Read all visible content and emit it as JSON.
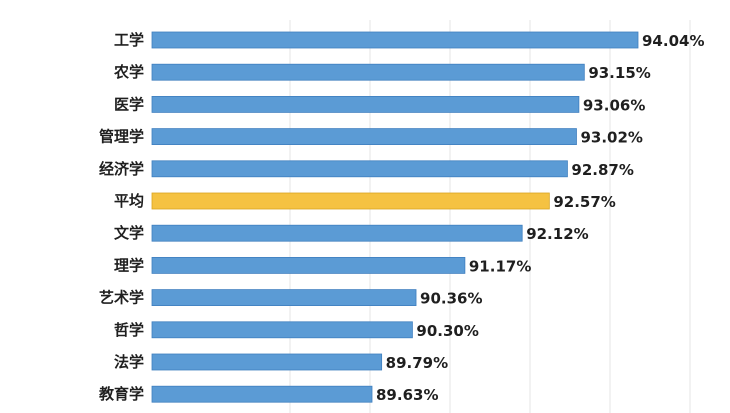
{
  "chart_data": {
    "type": "bar",
    "orientation": "horizontal",
    "title": "",
    "xlabel": "",
    "ylabel": "",
    "categories": [
      "工学",
      "农学",
      "医学",
      "管理学",
      "经济学",
      "平均",
      "文学",
      "理学",
      "艺术学",
      "哲学",
      "法学",
      "教育学"
    ],
    "values": [
      94.04,
      93.15,
      93.06,
      93.02,
      92.87,
      92.57,
      92.12,
      91.17,
      90.36,
      90.3,
      89.79,
      89.63
    ],
    "value_labels": [
      "94.04%",
      "93.15%",
      "93.06%",
      "93.02%",
      "92.87%",
      "92.57%",
      "92.12%",
      "91.17%",
      "90.36%",
      "90.30%",
      "89.79%",
      "89.63%"
    ],
    "highlight_category": "平均",
    "colors": {
      "bar": "#5b9bd5",
      "highlight": "#f5c242",
      "grid": "#e6e6e6"
    },
    "grid": true,
    "legend": "none"
  }
}
